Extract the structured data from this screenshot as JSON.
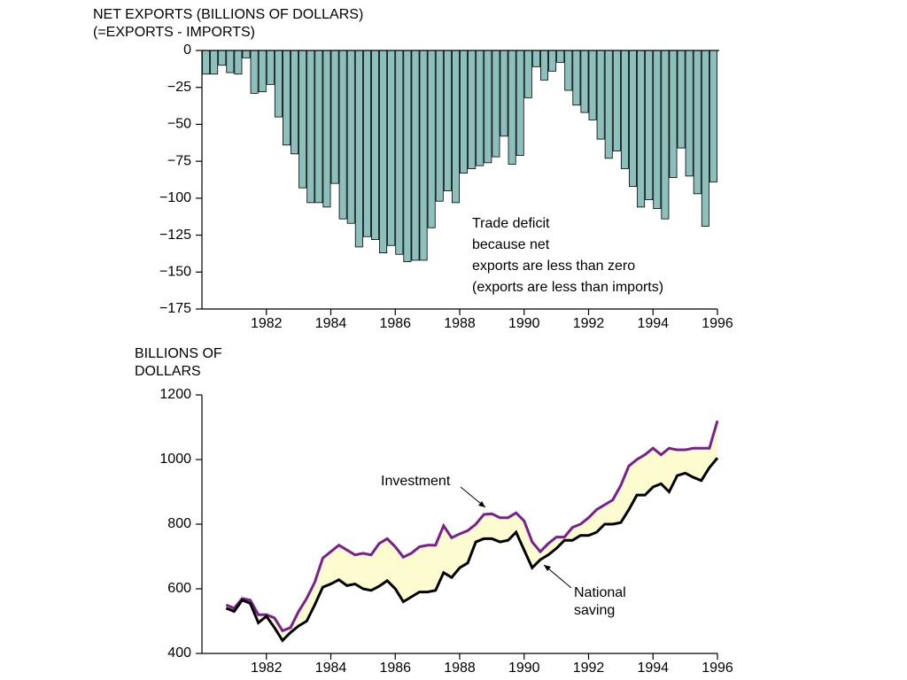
{
  "chart_data": [
    {
      "type": "bar",
      "ylabel": [
        "NET EXPORTS (BILLIONS OF DOLLARS)",
        "(=EXPORTS - IMPORTS)"
      ],
      "annotation": [
        "Trade deficit",
        "because net",
        "exports are less than zero",
        "(exports are less than imports)"
      ],
      "color": "#8dbfbc",
      "x": [
        1980.125,
        1980.375,
        1980.625,
        1980.875,
        1981.125,
        1981.375,
        1981.625,
        1981.875,
        1982.125,
        1982.375,
        1982.625,
        1982.875,
        1983.125,
        1983.375,
        1983.625,
        1983.875,
        1984.125,
        1984.375,
        1984.625,
        1984.875,
        1985.125,
        1985.375,
        1985.625,
        1985.875,
        1986.125,
        1986.375,
        1986.625,
        1986.875,
        1987.125,
        1987.375,
        1987.625,
        1987.875,
        1988.125,
        1988.375,
        1988.625,
        1988.875,
        1989.125,
        1989.375,
        1989.625,
        1989.875,
        1990.125,
        1990.375,
        1990.625,
        1990.875,
        1991.125,
        1991.375,
        1991.625,
        1991.875,
        1992.125,
        1992.375,
        1992.625,
        1992.875,
        1993.125,
        1993.375,
        1993.625,
        1993.875,
        1994.125,
        1994.375,
        1994.625,
        1994.875,
        1995.125,
        1995.375,
        1995.625,
        1995.875
      ],
      "values": [
        -16,
        -16,
        -10,
        -15,
        -16,
        -5,
        -29,
        -28,
        -23,
        -45,
        -64,
        -70,
        -93,
        -103,
        -103,
        -106,
        -90,
        -114,
        -117,
        -133,
        -126,
        -128,
        -137,
        -132,
        -138,
        -143,
        -142,
        -142,
        -120,
        -102,
        -95,
        -103,
        -83,
        -80,
        -78,
        -76,
        -72,
        -58,
        -77,
        -71,
        -32,
        -11,
        -20,
        -14,
        -8,
        -27,
        -37,
        -42,
        -47,
        -60,
        -73,
        -68,
        -80,
        -92,
        -106,
        -101,
        -107,
        -114,
        -86,
        -66,
        -85,
        -97,
        -119,
        -89
      ],
      "xlim": [
        1980,
        1996
      ],
      "xticks": [
        1982,
        1984,
        1986,
        1988,
        1990,
        1992,
        1994,
        1996
      ],
      "ylim": [
        -175,
        0
      ],
      "yticks": [
        0,
        {
          "value": -25,
          "label": "−25"
        },
        {
          "value": -50,
          "label": "−50"
        },
        {
          "value": -75,
          "label": "−75"
        },
        {
          "value": -100,
          "label": "−100"
        },
        {
          "value": -125,
          "label": "−125"
        },
        {
          "value": -150,
          "label": "−150"
        },
        {
          "value": -175,
          "label": "−175"
        }
      ]
    },
    {
      "type": "line",
      "ylabel": [
        "BILLIONS OF",
        "DOLLARS"
      ],
      "fill": "#fdfbd0",
      "x": [
        1980.75,
        1981,
        1981.25,
        1981.5,
        1981.75,
        1982,
        1982.25,
        1982.5,
        1982.75,
        1983,
        1983.25,
        1983.5,
        1983.75,
        1984,
        1984.25,
        1984.5,
        1984.75,
        1985,
        1985.25,
        1985.5,
        1985.75,
        1986,
        1986.25,
        1986.5,
        1986.75,
        1987,
        1987.25,
        1987.5,
        1987.75,
        1988,
        1988.25,
        1988.5,
        1988.75,
        1989,
        1989.25,
        1989.5,
        1989.75,
        1990,
        1990.25,
        1990.5,
        1990.75,
        1991,
        1991.25,
        1991.5,
        1991.75,
        1992,
        1992.25,
        1992.5,
        1992.75,
        1993,
        1993.25,
        1993.5,
        1993.75,
        1994,
        1994.25,
        1994.5,
        1994.75,
        1995,
        1995.25,
        1995.5,
        1995.75,
        1996
      ],
      "series": [
        {
          "name": "Investment",
          "color": "#7b1f8a",
          "values": [
            550,
            540,
            570,
            565,
            520,
            520,
            510,
            470,
            480,
            530,
            570,
            620,
            695,
            715,
            735,
            720,
            705,
            710,
            705,
            740,
            755,
            730,
            698,
            710,
            730,
            735,
            735,
            795,
            758,
            770,
            780,
            800,
            830,
            832,
            820,
            820,
            835,
            810,
            745,
            715,
            740,
            760,
            760,
            790,
            800,
            820,
            845,
            860,
            875,
            920,
            980,
            1000,
            1015,
            1035,
            1015,
            1035,
            1030,
            1030,
            1035,
            1035,
            1035,
            1120
          ]
        },
        {
          "name": "National saving",
          "color": "#000000",
          "values": [
            540,
            530,
            565,
            555,
            495,
            515,
            480,
            440,
            465,
            485,
            500,
            550,
            605,
            615,
            628,
            610,
            615,
            600,
            595,
            608,
            625,
            600,
            560,
            575,
            590,
            590,
            595,
            650,
            635,
            665,
            680,
            745,
            755,
            755,
            745,
            750,
            775,
            720,
            665,
            690,
            705,
            725,
            750,
            750,
            765,
            765,
            775,
            800,
            800,
            805,
            845,
            890,
            890,
            915,
            925,
            900,
            950,
            958,
            945,
            935,
            975,
            1005
          ]
        }
      ],
      "xlim": [
        1980,
        1996
      ],
      "xticks": [
        1982,
        1984,
        1986,
        1988,
        1990,
        1992,
        1994,
        1996
      ],
      "ylim": [
        400,
        1200
      ],
      "yticks": [
        400,
        600,
        800,
        1000,
        1200
      ]
    }
  ]
}
